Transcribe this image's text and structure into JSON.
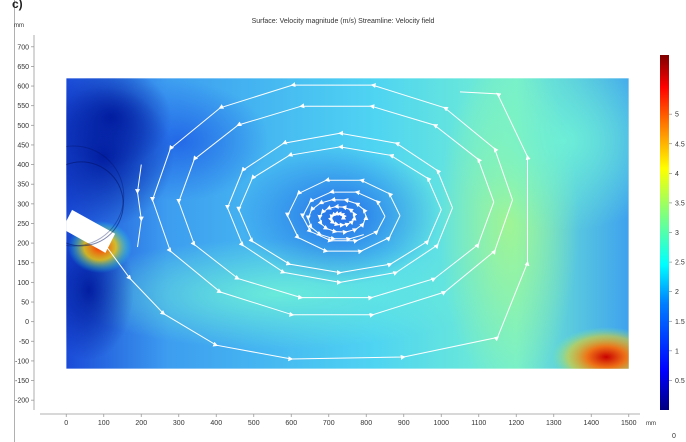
{
  "panel_label": "c)",
  "chart_data": {
    "type": "heatmap",
    "title": "Surface: Velocity magnitude (m/s)  Streamline: Velocity field",
    "x_unit": "mm",
    "y_unit": "mm",
    "xlim": [
      -70,
      1530
    ],
    "ylim": [
      -225,
      730
    ],
    "x_ticks": [
      0,
      100,
      200,
      300,
      400,
      500,
      600,
      700,
      800,
      900,
      1000,
      1100,
      1200,
      1300,
      1400,
      1500
    ],
    "y_ticks": [
      700,
      650,
      600,
      550,
      500,
      450,
      400,
      350,
      300,
      250,
      200,
      150,
      100,
      50,
      0,
      -50,
      -100,
      -150,
      -200
    ],
    "domain": {
      "x": [
        0,
        1500
      ],
      "y": [
        -120,
        620
      ]
    },
    "inlet": {
      "center": [
        60,
        230
      ],
      "angle_deg": -28,
      "length_mm": 130,
      "width_mm": 55
    },
    "vortex_center": [
      730,
      265
    ],
    "colorbar": {
      "min": 0,
      "max": 6,
      "ticks": [
        "5",
        "4.5",
        "4",
        "3.5",
        "3",
        "2.5",
        "2",
        "1.5",
        "1",
        "0.5"
      ],
      "tick_values": [
        5,
        4.5,
        4,
        3.5,
        3,
        2.5,
        2,
        1.5,
        1,
        0.5
      ],
      "min_label": "0",
      "colormap": "rainbow",
      "colors": [
        "#00007f",
        "#0000ff",
        "#007fff",
        "#00ffff",
        "#7fff7f",
        "#ffff00",
        "#ff7f00",
        "#ff0000",
        "#7f0000"
      ]
    },
    "streamline_color": "#ffffff"
  }
}
